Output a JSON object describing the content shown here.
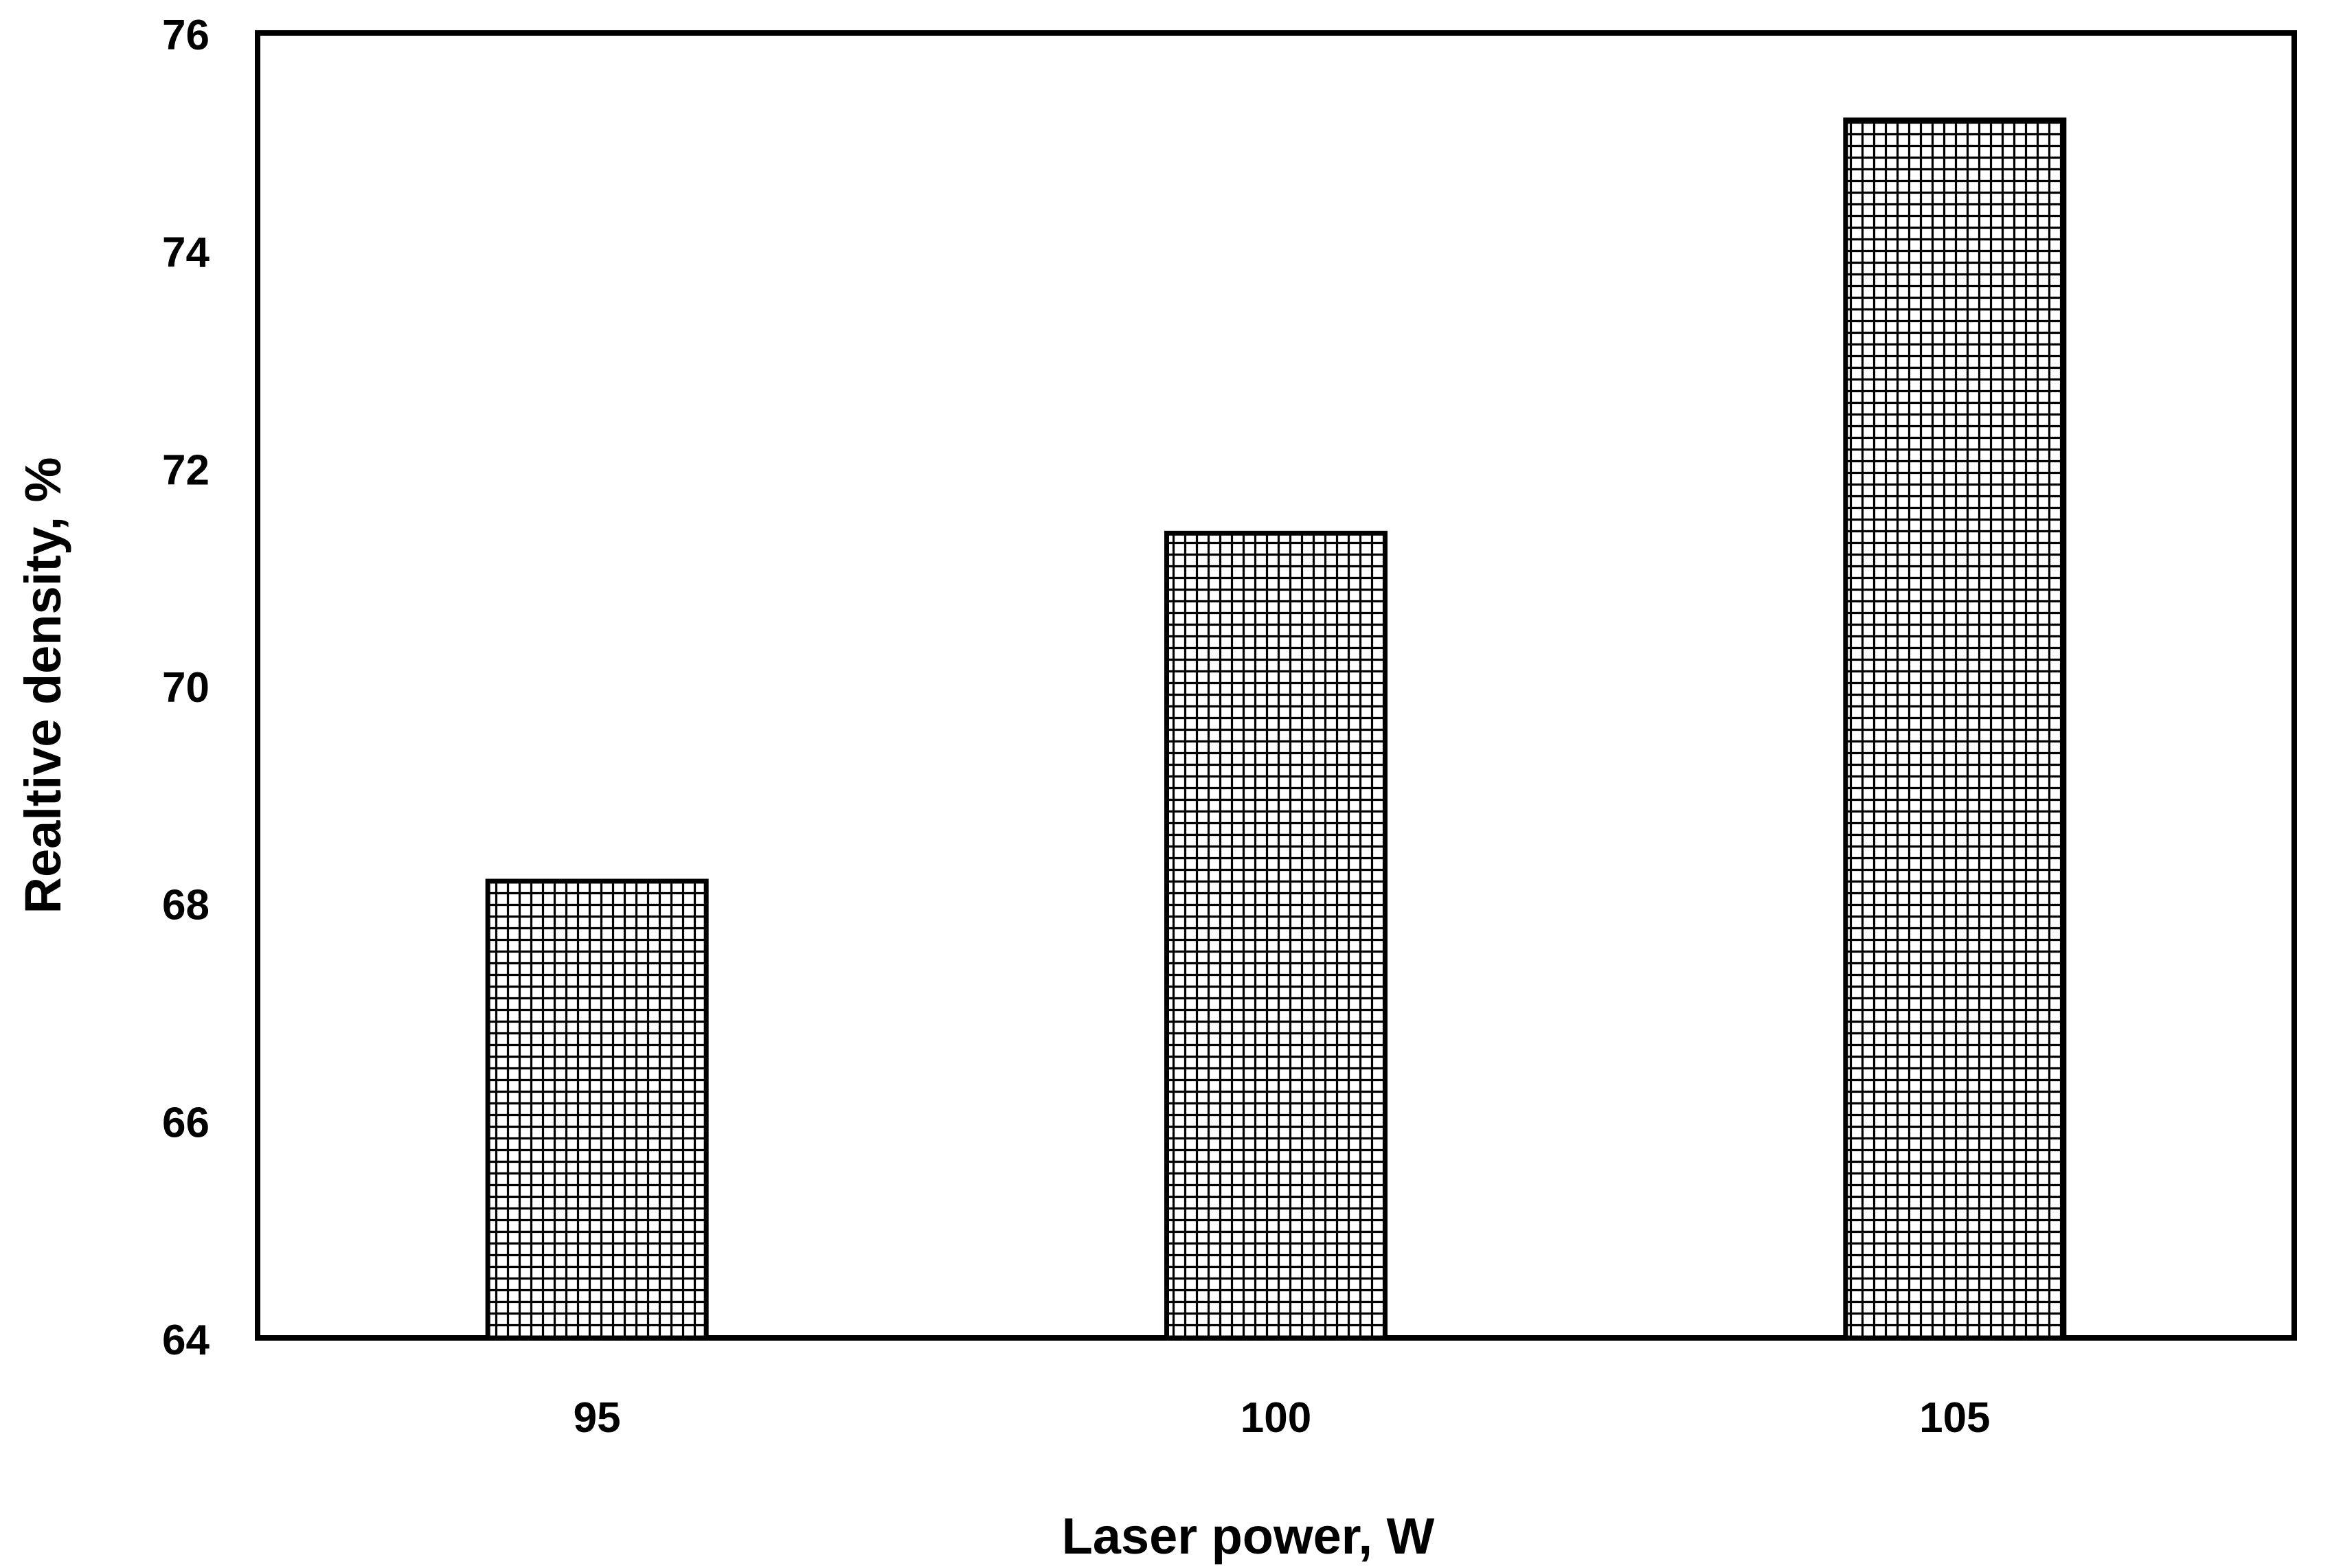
{
  "chart_data": {
    "type": "bar",
    "title": "",
    "xlabel": "Laser power, W",
    "ylabel": "Realtive density, %",
    "categories": [
      "95",
      "100",
      "105"
    ],
    "values": [
      68.2,
      71.4,
      75.2
    ],
    "ylim": [
      64,
      76
    ],
    "yticks": [
      "64",
      "66",
      "68",
      "70",
      "72",
      "74",
      "76"
    ],
    "grid": false,
    "legend": "none",
    "bar_fill": "crosshatch",
    "colors": {
      "bar_stroke": "#000000",
      "axis": "#000000",
      "background": "#ffffff"
    }
  }
}
